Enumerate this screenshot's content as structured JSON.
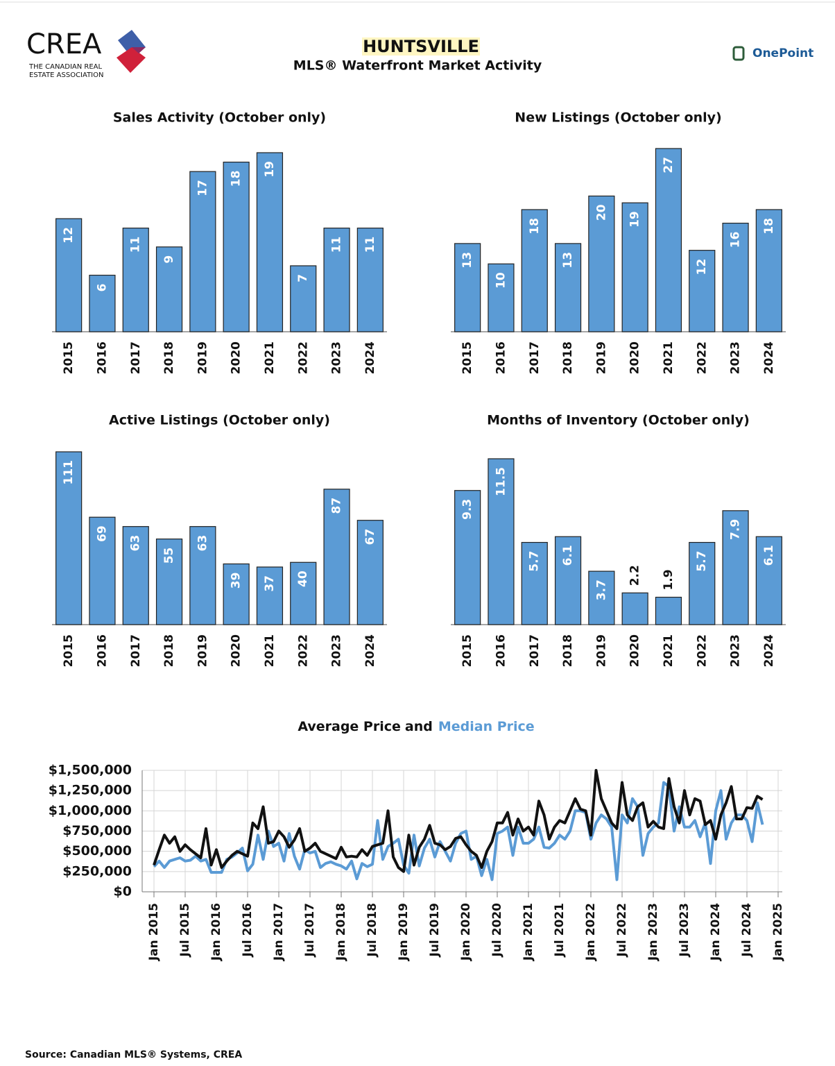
{
  "header": {
    "logo": "CREA",
    "logo_subtitle": [
      "THE CANADIAN REAL",
      "ESTATE ASSOCIATION"
    ],
    "title": "HUNTSVILLE",
    "subtitle": "MLS® Waterfront Market Activity",
    "partner": "OnePoint"
  },
  "source": "Source: Canadian MLS® Systems, CREA",
  "chart_data": [
    {
      "type": "bar",
      "title": "Sales Activity (October only)",
      "color": "#5b9bd5",
      "categories": [
        "2015",
        "2016",
        "2017",
        "2018",
        "2019",
        "2020",
        "2021",
        "2022",
        "2023",
        "2024"
      ],
      "values": [
        12,
        6,
        11,
        9,
        17,
        18,
        19,
        7,
        11,
        11
      ]
    },
    {
      "type": "bar",
      "title": "New Listings (October only)",
      "color": "#5b9bd5",
      "categories": [
        "2015",
        "2016",
        "2017",
        "2018",
        "2019",
        "2020",
        "2021",
        "2022",
        "2023",
        "2024"
      ],
      "values": [
        13,
        10,
        18,
        13,
        20,
        19,
        27,
        12,
        16,
        18
      ]
    },
    {
      "type": "bar",
      "title": "Active Listings (October only)",
      "color": "#5b9bd5",
      "categories": [
        "2015",
        "2016",
        "2017",
        "2018",
        "2019",
        "2020",
        "2021",
        "2022",
        "2023",
        "2024"
      ],
      "values": [
        111,
        69,
        63,
        55,
        63,
        39,
        37,
        40,
        87,
        67
      ]
    },
    {
      "type": "bar",
      "title": "Months of Inventory (October only)",
      "color": "#5b9bd5",
      "categories": [
        "2015",
        "2016",
        "2017",
        "2018",
        "2019",
        "2020",
        "2021",
        "2022",
        "2023",
        "2024"
      ],
      "values": [
        9.3,
        11.5,
        5.7,
        6.1,
        3.7,
        2.2,
        1.9,
        5.7,
        7.9,
        6.1
      ]
    },
    {
      "type": "line",
      "title_joiner": "and",
      "grid": true,
      "x": [
        "2015-01",
        "2015-02",
        "2015-03",
        "2015-04",
        "2015-05",
        "2015-06",
        "2015-07",
        "2015-08",
        "2015-09",
        "2015-10",
        "2015-11",
        "2015-12",
        "2016-01",
        "2016-02",
        "2016-03",
        "2016-04",
        "2016-05",
        "2016-06",
        "2016-07",
        "2016-08",
        "2016-09",
        "2016-10",
        "2016-11",
        "2016-12",
        "2017-01",
        "2017-02",
        "2017-03",
        "2017-04",
        "2017-05",
        "2017-06",
        "2017-07",
        "2017-08",
        "2017-09",
        "2017-10",
        "2017-11",
        "2017-12",
        "2018-01",
        "2018-02",
        "2018-03",
        "2018-04",
        "2018-05",
        "2018-06",
        "2018-07",
        "2018-08",
        "2018-09",
        "2018-10",
        "2018-11",
        "2018-12",
        "2019-01",
        "2019-02",
        "2019-03",
        "2019-04",
        "2019-05",
        "2019-06",
        "2019-07",
        "2019-08",
        "2019-09",
        "2019-10",
        "2019-11",
        "2019-12",
        "2020-01",
        "2020-02",
        "2020-03",
        "2020-04",
        "2020-05",
        "2020-06",
        "2020-07",
        "2020-08",
        "2020-09",
        "2020-10",
        "2020-11",
        "2020-12",
        "2021-01",
        "2021-02",
        "2021-03",
        "2021-04",
        "2021-05",
        "2021-06",
        "2021-07",
        "2021-08",
        "2021-09",
        "2021-10",
        "2021-11",
        "2021-12",
        "2022-01",
        "2022-02",
        "2022-03",
        "2022-04",
        "2022-05",
        "2022-06",
        "2022-07",
        "2022-08",
        "2022-09",
        "2022-10",
        "2022-11",
        "2022-12",
        "2023-01",
        "2023-02",
        "2023-03",
        "2023-04",
        "2023-05",
        "2023-06",
        "2023-07",
        "2023-08",
        "2023-09",
        "2023-10",
        "2023-11",
        "2023-12",
        "2024-01",
        "2024-02",
        "2024-03",
        "2024-04",
        "2024-05",
        "2024-06",
        "2024-07",
        "2024-08",
        "2024-09",
        "2024-10"
      ],
      "series": [
        {
          "name": "Average Price",
          "color": "#111111",
          "values": [
            330000,
            520000,
            700000,
            600000,
            680000,
            500000,
            580000,
            520000,
            470000,
            420000,
            780000,
            330000,
            520000,
            300000,
            380000,
            450000,
            500000,
            470000,
            440000,
            850000,
            780000,
            1050000,
            600000,
            620000,
            750000,
            680000,
            550000,
            640000,
            780000,
            500000,
            540000,
            600000,
            500000,
            470000,
            440000,
            410000,
            550000,
            430000,
            440000,
            430000,
            520000,
            450000,
            560000,
            580000,
            600000,
            1000000,
            430000,
            300000,
            250000,
            700000,
            330000,
            550000,
            650000,
            820000,
            600000,
            580000,
            520000,
            560000,
            660000,
            680000,
            580000,
            500000,
            450000,
            300000,
            500000,
            620000,
            850000,
            850000,
            980000,
            700000,
            900000,
            750000,
            800000,
            700000,
            1120000,
            950000,
            650000,
            800000,
            880000,
            850000,
            1000000,
            1150000,
            1020000,
            1000000,
            700000,
            1500000,
            1150000,
            1000000,
            850000,
            780000,
            1350000,
            950000,
            880000,
            1050000,
            1100000,
            800000,
            870000,
            800000,
            780000,
            1400000,
            1050000,
            850000,
            1250000,
            950000,
            1150000,
            1120000,
            830000,
            880000,
            650000,
            950000,
            1100000,
            1300000,
            900000,
            900000,
            1040000,
            1030000,
            1180000,
            1140000
          ]
        },
        {
          "name": "Median Price",
          "color": "#5b9bd5",
          "values": [
            310000,
            380000,
            300000,
            380000,
            400000,
            420000,
            380000,
            390000,
            440000,
            380000,
            400000,
            240000,
            240000,
            240000,
            400000,
            430000,
            480000,
            540000,
            260000,
            340000,
            700000,
            400000,
            750000,
            560000,
            600000,
            380000,
            720000,
            440000,
            280000,
            520000,
            480000,
            500000,
            300000,
            350000,
            370000,
            340000,
            320000,
            280000,
            380000,
            160000,
            350000,
            310000,
            340000,
            880000,
            400000,
            560000,
            600000,
            650000,
            330000,
            230000,
            700000,
            320000,
            540000,
            650000,
            430000,
            620000,
            500000,
            380000,
            600000,
            720000,
            750000,
            400000,
            440000,
            200000,
            400000,
            150000,
            720000,
            750000,
            800000,
            450000,
            800000,
            600000,
            600000,
            650000,
            800000,
            550000,
            540000,
            600000,
            700000,
            650000,
            750000,
            1000000,
            1000000,
            980000,
            650000,
            850000,
            950000,
            900000,
            800000,
            150000,
            950000,
            850000,
            1150000,
            1050000,
            450000,
            720000,
            800000,
            850000,
            1350000,
            1300000,
            750000,
            1050000,
            800000,
            800000,
            880000,
            680000,
            850000,
            350000,
            1000000,
            1250000,
            650000,
            850000,
            950000,
            950000,
            880000,
            620000,
            1100000,
            830000
          ]
        }
      ],
      "xlim": [
        "2015-01",
        "2025-01"
      ],
      "xticks": [
        {
          "value": "2015-01",
          "label": "Jan 2015"
        },
        {
          "value": "2015-07",
          "label": "Jul 2015"
        },
        {
          "value": "2016-01",
          "label": "Jan 2016"
        },
        {
          "value": "2016-07",
          "label": "Jul 2016"
        },
        {
          "value": "2017-01",
          "label": "Jan 2017"
        },
        {
          "value": "2017-07",
          "label": "Jul 2017"
        },
        {
          "value": "2018-01",
          "label": "Jan 2018"
        },
        {
          "value": "2018-07",
          "label": "Jul 2018"
        },
        {
          "value": "2019-01",
          "label": "Jan 2019"
        },
        {
          "value": "2019-07",
          "label": "Jul 2019"
        },
        {
          "value": "2020-01",
          "label": "Jan 2020"
        },
        {
          "value": "2020-07",
          "label": "Jul 2020"
        },
        {
          "value": "2021-01",
          "label": "Jan 2021"
        },
        {
          "value": "2021-07",
          "label": "Jul 2021"
        },
        {
          "value": "2022-01",
          "label": "Jan 2022"
        },
        {
          "value": "2022-07",
          "label": "Jul 2022"
        },
        {
          "value": "2023-01",
          "label": "Jan 2023"
        },
        {
          "value": "2023-07",
          "label": "Jul 2023"
        },
        {
          "value": "2024-01",
          "label": "Jan 2024"
        },
        {
          "value": "2024-07",
          "label": "Jul 2024"
        },
        {
          "value": "2025-01",
          "label": "Jan 2025"
        }
      ],
      "ylim": [
        0,
        1500000
      ],
      "yticks": [
        {
          "value": 0,
          "label": "$0"
        },
        {
          "value": 250000,
          "label": "$250,000"
        },
        {
          "value": 500000,
          "label": "$500,000"
        },
        {
          "value": 750000,
          "label": "$750,000"
        },
        {
          "value": 1000000,
          "label": "$1,000,000"
        },
        {
          "value": 1250000,
          "label": "$1,250,000"
        },
        {
          "value": 1500000,
          "label": "$1,500,000"
        }
      ]
    }
  ]
}
